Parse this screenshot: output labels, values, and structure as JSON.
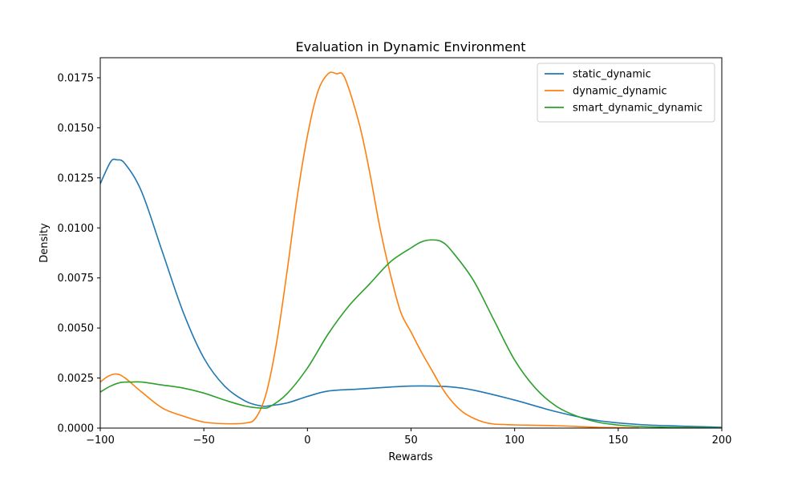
{
  "chart_data": {
    "type": "line",
    "title": "Evaluation in Dynamic Environment",
    "xlabel": "Rewards",
    "ylabel": "Density",
    "xlim": [
      -100,
      200
    ],
    "ylim": [
      0,
      0.0185
    ],
    "xticks": [
      -100,
      -50,
      0,
      50,
      100,
      150,
      200
    ],
    "xtick_labels": [
      "−100",
      "−50",
      "0",
      "50",
      "100",
      "150",
      "200"
    ],
    "yticks": [
      0,
      0.0025,
      0.005,
      0.0075,
      0.01,
      0.0125,
      0.015,
      0.0175
    ],
    "ytick_labels": [
      "0.0000",
      "0.0025",
      "0.0050",
      "0.0075",
      "0.0100",
      "0.0125",
      "0.0150",
      "0.0175"
    ],
    "grid": false,
    "legend_position": "top-right",
    "series": [
      {
        "name": "static_dynamic",
        "color": "#1f77b4",
        "x": [
          -100,
          -95,
          -92,
          -88,
          -80,
          -70,
          -60,
          -50,
          -40,
          -30,
          -22,
          -18,
          -10,
          0,
          10,
          25,
          40,
          50,
          60,
          70,
          80,
          100,
          120,
          140,
          160,
          180,
          200
        ],
        "y": [
          0.0122,
          0.0133,
          0.0134,
          0.0132,
          0.0118,
          0.0088,
          0.0058,
          0.0035,
          0.0021,
          0.00135,
          0.0011,
          0.00112,
          0.00125,
          0.00158,
          0.00185,
          0.00195,
          0.00205,
          0.0021,
          0.0021,
          0.00205,
          0.0019,
          0.0014,
          0.00082,
          0.00038,
          0.00018,
          0.0001,
          4e-05
        ]
      },
      {
        "name": "dynamic_dynamic",
        "color": "#ff7f0e",
        "x": [
          -100,
          -96,
          -92,
          -88,
          -80,
          -70,
          -60,
          -50,
          -40,
          -30,
          -25,
          -20,
          -15,
          -10,
          -5,
          0,
          5,
          10,
          14,
          18,
          25,
          30,
          35,
          40,
          45,
          50,
          55,
          60,
          65,
          70,
          75,
          80,
          85,
          90,
          95,
          100,
          120,
          140,
          160
        ],
        "y": [
          0.0023,
          0.0026,
          0.0027,
          0.0025,
          0.0018,
          0.001,
          0.0006,
          0.0003,
          0.00022,
          0.00025,
          0.0005,
          0.0017,
          0.0042,
          0.0077,
          0.0115,
          0.0146,
          0.0168,
          0.0177,
          0.0177,
          0.0175,
          0.0152,
          0.0128,
          0.01,
          0.0077,
          0.0058,
          0.0048,
          0.0038,
          0.0029,
          0.002,
          0.0013,
          0.0008,
          0.0005,
          0.0003,
          0.0002,
          0.00018,
          0.00016,
          0.00012,
          4e-05,
          1e-05
        ]
      },
      {
        "name": "smart_dynamic_dynamic",
        "color": "#2ca02c",
        "x": [
          -100,
          -95,
          -90,
          -85,
          -80,
          -70,
          -60,
          -50,
          -40,
          -30,
          -22,
          -18,
          -10,
          0,
          10,
          20,
          30,
          40,
          50,
          55,
          60,
          65,
          70,
          80,
          90,
          100,
          110,
          120,
          130,
          140,
          150,
          160,
          180,
          200
        ],
        "y": [
          0.0018,
          0.0021,
          0.00228,
          0.0023,
          0.0023,
          0.00215,
          0.002,
          0.00175,
          0.0014,
          0.0011,
          0.001,
          0.00108,
          0.0017,
          0.003,
          0.0047,
          0.0061,
          0.0072,
          0.0083,
          0.009,
          0.0093,
          0.0094,
          0.0093,
          0.0088,
          0.0074,
          0.0054,
          0.0034,
          0.002,
          0.0011,
          0.0006,
          0.0003,
          0.00015,
          8e-05,
          3e-05,
          1e-05
        ]
      }
    ]
  }
}
